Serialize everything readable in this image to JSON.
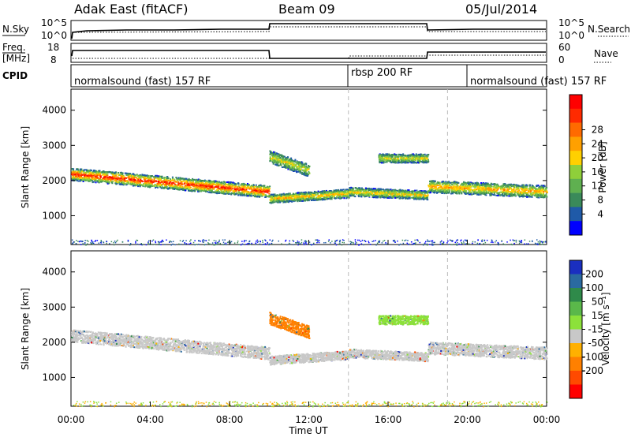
{
  "header": {
    "station": "Adak East (fitACF)",
    "beam": "Beam 09",
    "date": "05/Jul/2014"
  },
  "strips": {
    "nsky_label": "N.Sky",
    "nsky_ticks": [
      "10^5",
      "10^0"
    ],
    "nsearch_label": "N.Search",
    "nsearch_ticks": [
      "10^5",
      "10^0"
    ],
    "freq_label_top": "Freq.",
    "freq_label_unit": "[MHz]",
    "freq_ticks": [
      "18",
      "8"
    ],
    "nave_label": "Nave",
    "nave_ticks": [
      "60",
      "0"
    ],
    "cpid_label": "CPID",
    "cpid_segments": [
      {
        "label": "normalsound (fast) 157 RF",
        "start_hour": 0,
        "end_hour": 14
      },
      {
        "label": "rbsp 200 RF",
        "start_hour": 14,
        "end_hour": 19
      },
      {
        "label": "normalsound (fast) 157 RF",
        "start_hour": 19,
        "end_hour": 24
      }
    ]
  },
  "chart_data": [
    {
      "type": "heatmap",
      "panel": "power",
      "ylabel": "Slant Range [km]",
      "yticks": [
        "1000",
        "2000",
        "3000",
        "4000"
      ],
      "ylim": [
        180,
        4600
      ],
      "xlim": [
        0,
        24
      ],
      "colorbar": {
        "label": "Power [dB]",
        "ticks": [
          "4",
          "8",
          "12",
          "16",
          "20",
          "24",
          "28"
        ],
        "colors": [
          "#0000ff",
          "#1f5aa8",
          "#3a8a5a",
          "#5fb050",
          "#8fcf3a",
          "#ffd000",
          "#ffa000",
          "#ff6a00",
          "#ff2a00",
          "#ff0000"
        ]
      },
      "bands": [
        {
          "start_hour": 0.0,
          "end_hour": 10.0,
          "range_start_km": 2200,
          "range_end_km": 1700,
          "width_km": 350,
          "level": 0.85
        },
        {
          "start_hour": 10.0,
          "end_hour": 14.0,
          "range_start_km": 1500,
          "range_end_km": 1650,
          "width_km": 250,
          "level": 0.55
        },
        {
          "start_hour": 10.0,
          "end_hour": 12.0,
          "range_start_km": 2700,
          "range_end_km": 2300,
          "width_km": 350,
          "level": 0.45
        },
        {
          "start_hour": 14.0,
          "end_hour": 18.0,
          "range_start_km": 1700,
          "range_end_km": 1600,
          "width_km": 250,
          "level": 0.5
        },
        {
          "start_hour": 15.5,
          "end_hour": 18.0,
          "range_start_km": 2650,
          "range_end_km": 2650,
          "width_km": 250,
          "level": 0.45
        },
        {
          "start_hour": 18.0,
          "end_hour": 24.0,
          "range_start_km": 1850,
          "range_end_km": 1700,
          "width_km": 350,
          "level": 0.6
        }
      ]
    },
    {
      "type": "heatmap",
      "panel": "velocity",
      "ylabel": "Slant Range [km]",
      "yticks": [
        "1000",
        "2000",
        "3000",
        "4000"
      ],
      "ylim": [
        180,
        4600
      ],
      "xlim": [
        0,
        24
      ],
      "xlabel": "Time UT",
      "xticks": [
        "00:00",
        "04:00",
        "08:00",
        "12:00",
        "16:00",
        "20:00",
        "00:00"
      ],
      "colorbar": {
        "label": "Velocity [m s⁻¹]",
        "ticks": [
          "200",
          "100",
          "50",
          "15",
          "-15",
          "-50",
          "-100",
          "-200"
        ],
        "colors": [
          "#1a2fc0",
          "#2a6aa0",
          "#2f8a4a",
          "#5ab84a",
          "#8ce13a",
          "#c8c8c8",
          "#ffb000",
          "#ff8000",
          "#ff4a00",
          "#ff0000"
        ]
      },
      "bands": [
        {
          "start_hour": 0.0,
          "end_hour": 10.0,
          "range_start_km": 2200,
          "range_end_km": 1700,
          "width_km": 350,
          "color_index": 5
        },
        {
          "start_hour": 10.0,
          "end_hour": 14.0,
          "range_start_km": 1500,
          "range_end_km": 1650,
          "width_km": 250,
          "color_index": 5
        },
        {
          "start_hour": 10.0,
          "end_hour": 12.0,
          "range_start_km": 2700,
          "range_end_km": 2300,
          "width_km": 350,
          "color_index": 7
        },
        {
          "start_hour": 14.0,
          "end_hour": 18.0,
          "range_start_km": 1700,
          "range_end_km": 1600,
          "width_km": 250,
          "color_index": 5
        },
        {
          "start_hour": 15.5,
          "end_hour": 18.0,
          "range_start_km": 2650,
          "range_end_km": 2650,
          "width_km": 250,
          "color_index": 4
        },
        {
          "start_hour": 18.0,
          "end_hour": 24.0,
          "range_start_km": 1850,
          "range_end_km": 1700,
          "width_km": 350,
          "color_index": 5
        }
      ]
    }
  ]
}
